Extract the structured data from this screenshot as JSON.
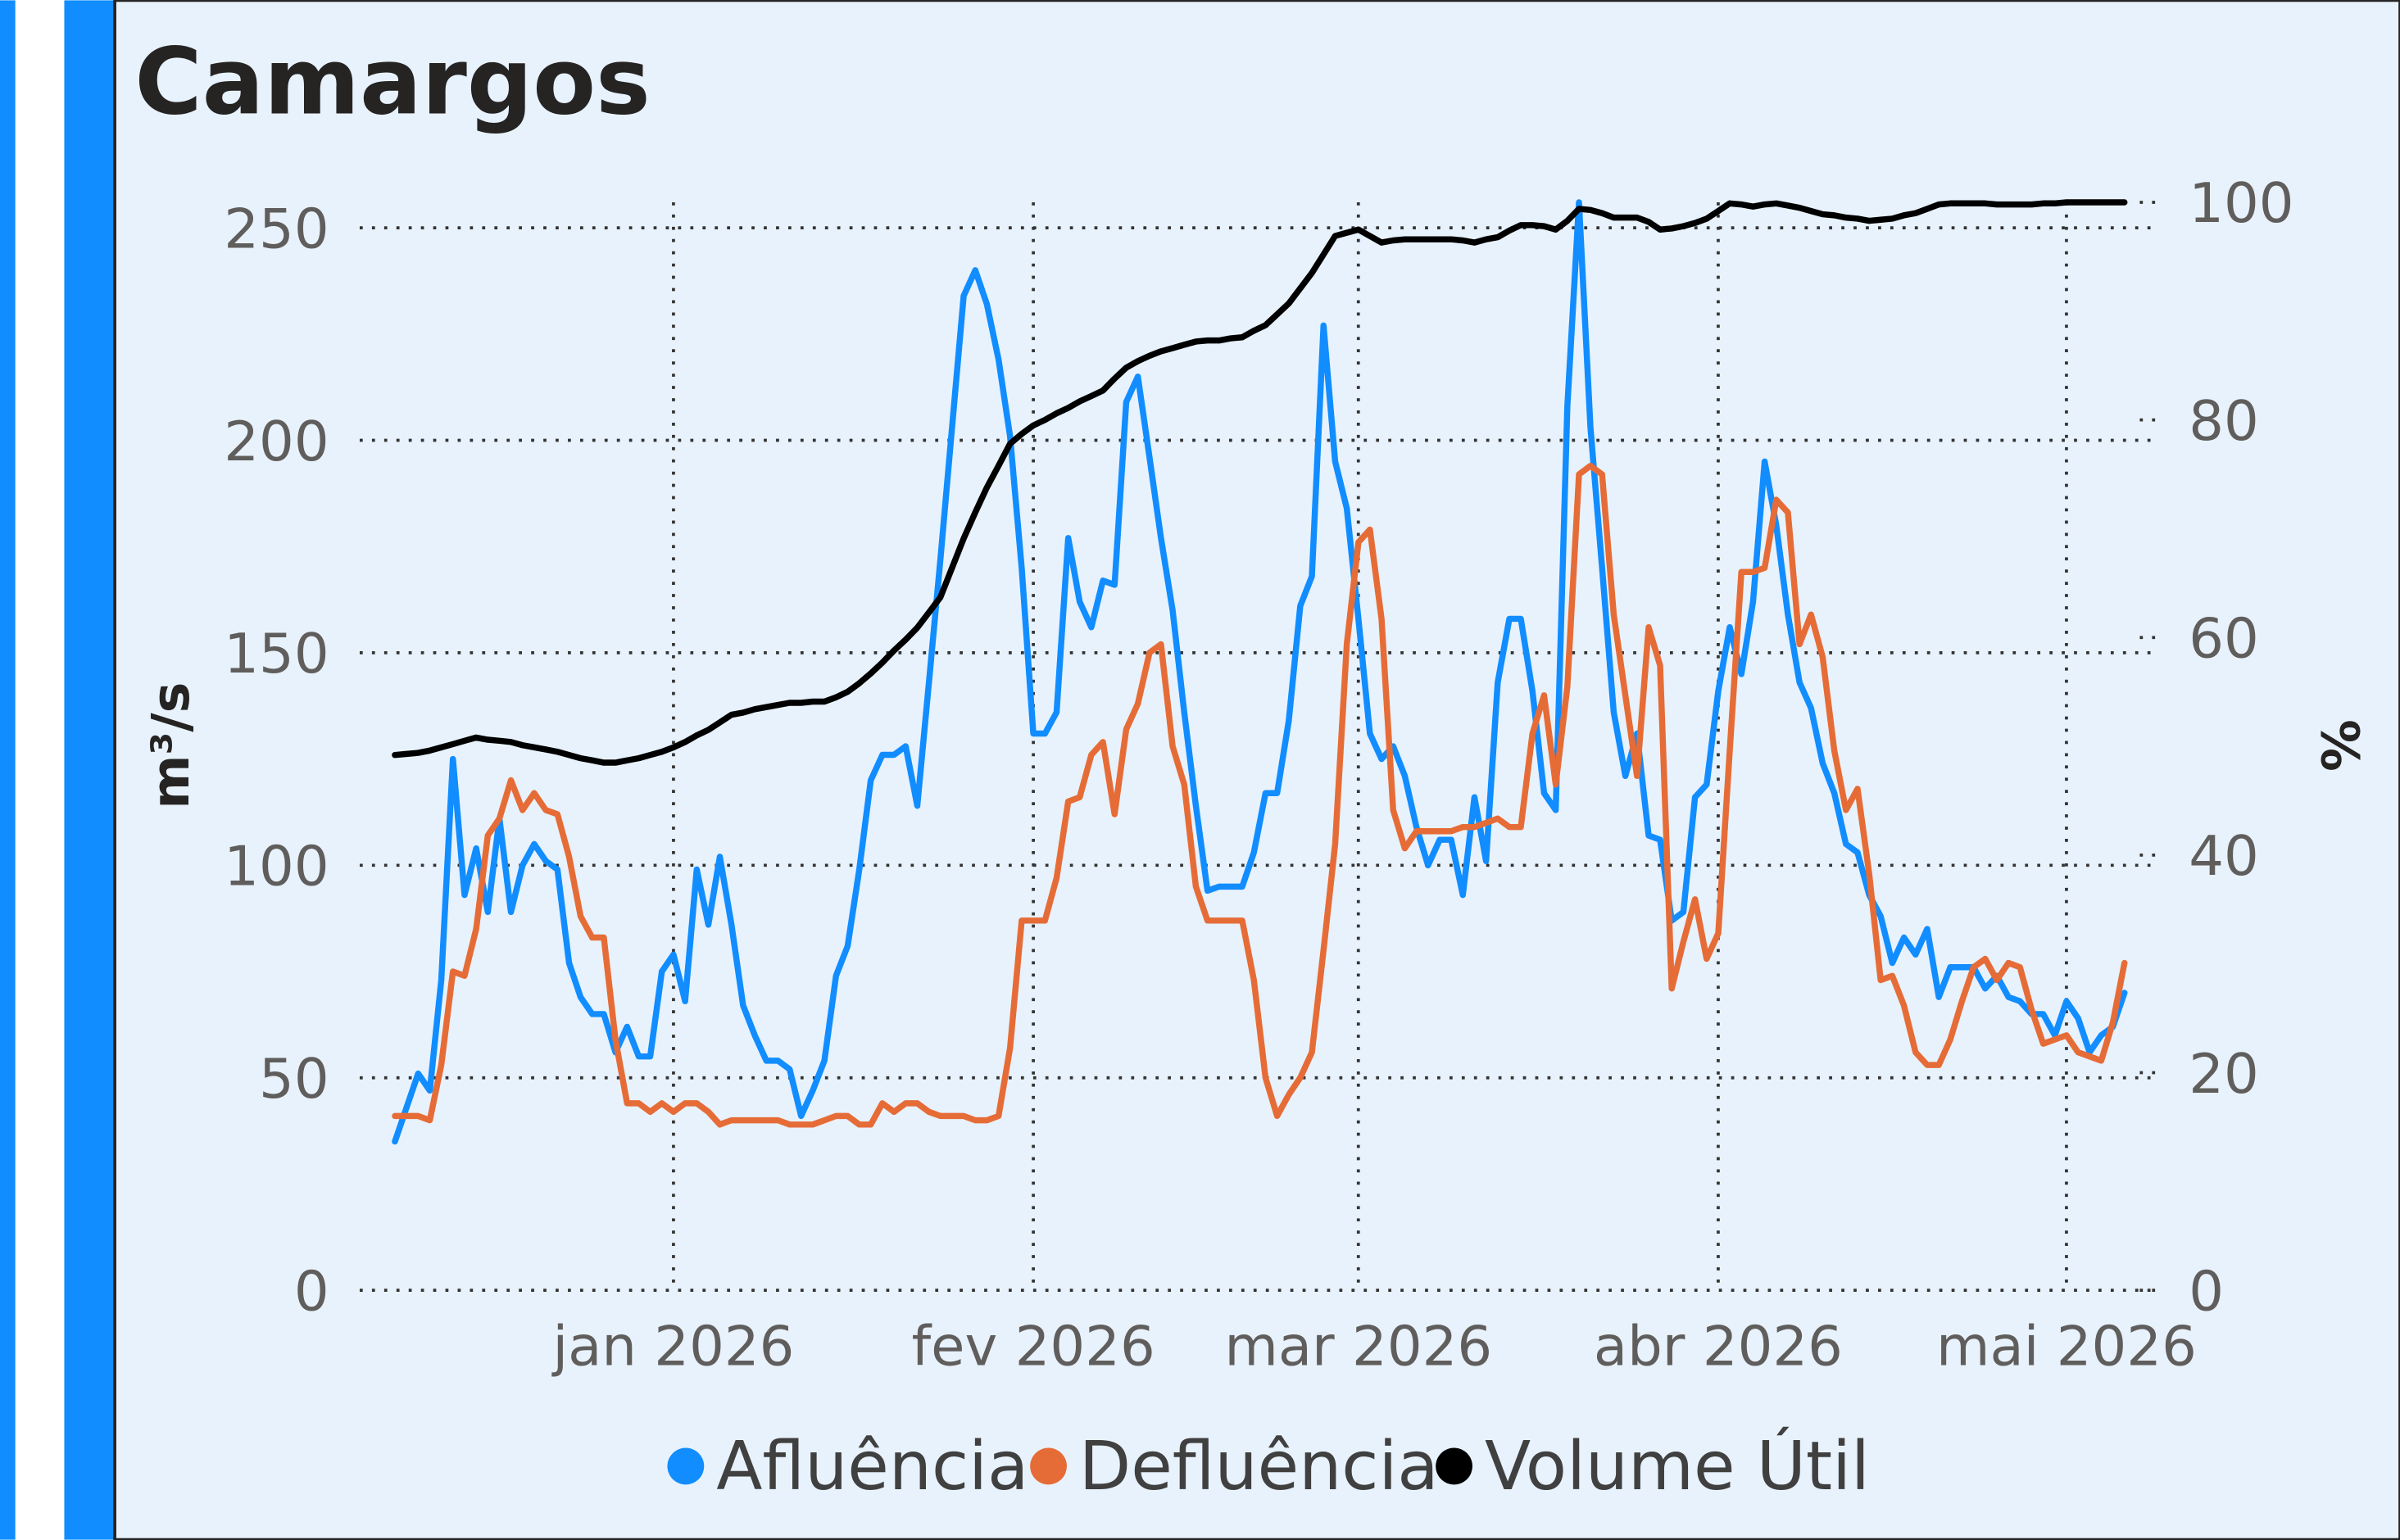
{
  "chart_data": {
    "type": "line",
    "title": "Camargos",
    "y_label": "m³/s",
    "y2_label": "%",
    "categories": [
      null,
      null,
      null,
      null,
      null,
      null,
      null,
      null,
      null,
      null,
      null,
      null,
      null,
      null,
      null,
      null,
      null,
      null,
      null,
      null,
      null,
      null,
      null,
      null,
      "jan 2026",
      null,
      null,
      null,
      null,
      null,
      null,
      null,
      null,
      null,
      null,
      null,
      null,
      null,
      null,
      null,
      null,
      null,
      null,
      null,
      null,
      null,
      null,
      null,
      null,
      null,
      null,
      null,
      null,
      null,
      null,
      "fev 2026",
      null,
      null,
      null,
      null,
      null,
      null,
      null,
      null,
      null,
      null,
      null,
      null,
      null,
      null,
      null,
      null,
      null,
      null,
      null,
      null,
      null,
      null,
      null,
      null,
      null,
      null,
      null,
      "mar 2026",
      null,
      null,
      null,
      null,
      null,
      null,
      null,
      null,
      null,
      null,
      null,
      null,
      null,
      null,
      null,
      null,
      null,
      null,
      null,
      null,
      null,
      null,
      null,
      null,
      null,
      null,
      null,
      null,
      null,
      null,
      "abr 2026",
      null,
      null,
      null,
      null,
      null,
      null,
      null,
      null,
      null,
      null,
      null,
      null,
      null,
      null,
      null,
      null,
      null,
      null,
      null,
      null,
      null,
      null,
      null,
      null,
      null,
      null,
      null,
      null,
      null,
      "mai 2026",
      null,
      null,
      null,
      null,
      null
    ],
    "series": [
      {
        "name": "Afluência",
        "color": "#118dff",
        "values": [
          35,
          43,
          51,
          47,
          73,
          125,
          93,
          104,
          89,
          111,
          89,
          100,
          105,
          101,
          99,
          77,
          69,
          65,
          65,
          56,
          62,
          55,
          55,
          75,
          79,
          68,
          99,
          86,
          102,
          86,
          67,
          60,
          54,
          54,
          52,
          41,
          47,
          54,
          74,
          81,
          99,
          120,
          126,
          126,
          128,
          114,
          143,
          172,
          203,
          234,
          240,
          232,
          219,
          201,
          170,
          131,
          131,
          136,
          177,
          162,
          156,
          167,
          166,
          209,
          215,
          196,
          177,
          160,
          136,
          114,
          94,
          95,
          95,
          95,
          103,
          117,
          117,
          134,
          161,
          168,
          227,
          195,
          184,
          158,
          131,
          125,
          128,
          121,
          109,
          100,
          106,
          106,
          93,
          116,
          101,
          143,
          158,
          158,
          141,
          117,
          113,
          208,
          256,
          203,
          170,
          136,
          121,
          131,
          107,
          106,
          87,
          89,
          116,
          119,
          141,
          156,
          145,
          162,
          195,
          180,
          159,
          143,
          137,
          124,
          117,
          105,
          103,
          93,
          88,
          77,
          83,
          79,
          85,
          69,
          76,
          76,
          76,
          71,
          74,
          69,
          68,
          65,
          65,
          60,
          68,
          64,
          56,
          60,
          62,
          70
        ]
      },
      {
        "name": "Defluência",
        "color": "#e66c37",
        "values": [
          41,
          41,
          41,
          40,
          53,
          75,
          74,
          85,
          107,
          111,
          120,
          113,
          117,
          113,
          112,
          102,
          88,
          83,
          83,
          59,
          44,
          44,
          42,
          44,
          42,
          44,
          44,
          42,
          39,
          40,
          40,
          40,
          40,
          40,
          39,
          39,
          39,
          40,
          41,
          41,
          39,
          39,
          44,
          42,
          44,
          44,
          42,
          41,
          41,
          41,
          40,
          40,
          41,
          57,
          87,
          87,
          87,
          97,
          115,
          116,
          126,
          129,
          112,
          132,
          138,
          150,
          152,
          128,
          119,
          95,
          87,
          87,
          87,
          87,
          73,
          50,
          41,
          46,
          50,
          56,
          80,
          105,
          152,
          176,
          179,
          158,
          113,
          104,
          108,
          108,
          108,
          108,
          109,
          109,
          110,
          111,
          109,
          109,
          131,
          140,
          119,
          142,
          192,
          194,
          192,
          159,
          140,
          121,
          156,
          147,
          71,
          82,
          92,
          78,
          84,
          127,
          169,
          169,
          170,
          186,
          183,
          152,
          159,
          149,
          127,
          113,
          118,
          98,
          73,
          74,
          67,
          56,
          53,
          53,
          59,
          68,
          76,
          78,
          73,
          77,
          76,
          66,
          58,
          59,
          60,
          56,
          55,
          54,
          63,
          77
        ]
      },
      {
        "name": "Volume Útil",
        "color": "#000000",
        "axis": "y2",
        "values": [
          49.2,
          49.3,
          49.4,
          49.6,
          49.9,
          50.2,
          50.5,
          50.8,
          50.6,
          50.5,
          50.4,
          50.1,
          49.9,
          49.7,
          49.5,
          49.2,
          48.9,
          48.7,
          48.5,
          48.5,
          48.7,
          48.9,
          49.2,
          49.5,
          49.9,
          50.4,
          51.0,
          51.5,
          52.2,
          52.9,
          53.1,
          53.4,
          53.6,
          53.8,
          54.0,
          54.0,
          54.1,
          54.1,
          54.5,
          55.0,
          55.8,
          56.7,
          57.7,
          58.8,
          59.8,
          60.9,
          62.3,
          63.7,
          66.4,
          69.1,
          71.5,
          73.8,
          75.8,
          77.8,
          78.7,
          79.5,
          80.0,
          80.6,
          81.1,
          81.7,
          82.2,
          82.7,
          83.8,
          84.8,
          85.4,
          85.9,
          86.3,
          86.6,
          86.9,
          87.2,
          87.3,
          87.3,
          87.5,
          87.6,
          88.2,
          88.7,
          89.7,
          90.7,
          92.1,
          93.5,
          95.2,
          96.9,
          97.2,
          97.5,
          96.9,
          96.3,
          96.5,
          96.6,
          96.6,
          96.6,
          96.6,
          96.6,
          96.5,
          96.3,
          96.6,
          96.8,
          97.4,
          97.9,
          97.9,
          97.8,
          97.5,
          98.3,
          99.4,
          99.3,
          99.0,
          98.6,
          98.6,
          98.6,
          98.2,
          97.5,
          97.6,
          97.8,
          98.1,
          98.5,
          99.2,
          99.9,
          99.8,
          99.6,
          99.8,
          99.9,
          99.7,
          99.5,
          99.2,
          98.9,
          98.8,
          98.6,
          98.5,
          98.3,
          98.4,
          98.5,
          98.8,
          99.0,
          99.4,
          99.8,
          99.9,
          99.9,
          99.9,
          99.9,
          99.8,
          99.8,
          99.8,
          99.8,
          99.9,
          99.9,
          100.0,
          100.0,
          100.0,
          100.0,
          100.0,
          100.0
        ]
      }
    ],
    "ylim": [
      0,
      256
    ],
    "yticks": [
      0,
      50,
      100,
      150,
      200,
      250
    ],
    "y2lim": [
      0,
      100
    ],
    "y2ticks": [
      0,
      20,
      40,
      60,
      80,
      100
    ],
    "grid": true
  }
}
